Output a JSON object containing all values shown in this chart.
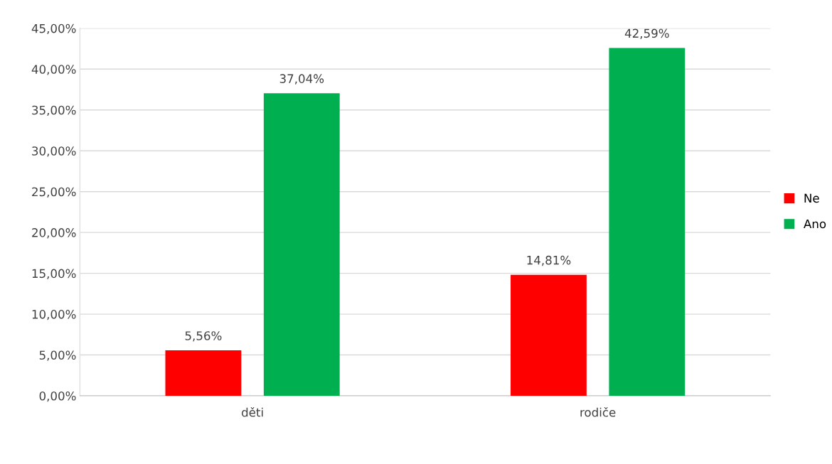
{
  "chart_data": {
    "type": "bar",
    "categories": [
      "děti",
      "rodiče"
    ],
    "series": [
      {
        "name": "Ne",
        "color": "#ff0000",
        "values": [
          5.56,
          14.81
        ],
        "value_labels": [
          "5,56%",
          "14,81%"
        ]
      },
      {
        "name": "Ano",
        "color": "#00b050",
        "values": [
          37.04,
          42.59
        ],
        "value_labels": [
          "37,04%",
          "42,59%"
        ]
      }
    ],
    "ylim": [
      0,
      45
    ],
    "yticks": [
      {
        "value": 0,
        "label": "0,00%"
      },
      {
        "value": 5,
        "label": "5,00%"
      },
      {
        "value": 10,
        "label": "10,00%"
      },
      {
        "value": 15,
        "label": "15,00%"
      },
      {
        "value": 20,
        "label": "20,00%"
      },
      {
        "value": 25,
        "label": "25,00%"
      },
      {
        "value": 30,
        "label": "30,00%"
      },
      {
        "value": 35,
        "label": "35,00%"
      },
      {
        "value": 40,
        "label": "40,00%"
      },
      {
        "value": 45,
        "label": "45,00%"
      }
    ],
    "grid": "y",
    "legend": "right"
  }
}
